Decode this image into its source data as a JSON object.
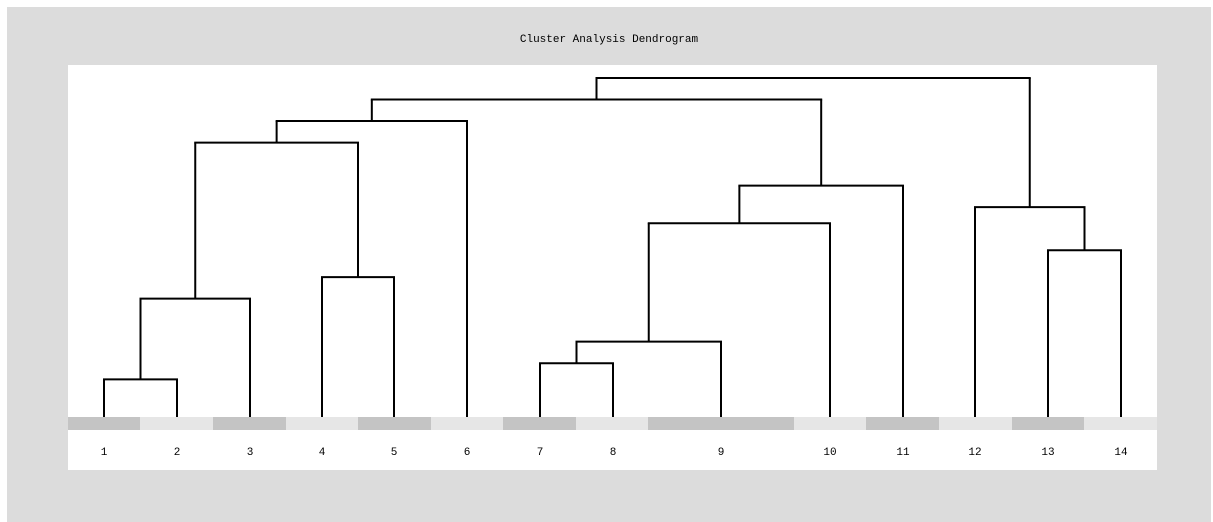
{
  "title": "Cluster Analysis Dendrogram",
  "leaves": [
    "1",
    "2",
    "3",
    "4",
    "5",
    "6",
    "7",
    "8",
    "9",
    "10",
    "11",
    "12",
    "13",
    "14"
  ],
  "colors": {
    "background": "#dcdcdc",
    "plot": "#ffffff",
    "line": "#000000",
    "band_dark": "#c4c4c4",
    "band_light": "#e6e6e6"
  },
  "merges": [
    {
      "a": "1",
      "b": "2",
      "height": 0.7
    },
    {
      "a": "1-2",
      "b": "3",
      "height": 2.2
    },
    {
      "a": "4",
      "b": "5",
      "height": 2.6
    },
    {
      "a": "1-3",
      "b": "4-5",
      "height": 5.1
    },
    {
      "a": "1-5",
      "b": "6",
      "height": 5.5
    },
    {
      "a": "7",
      "b": "8",
      "height": 1.0
    },
    {
      "a": "7-8",
      "b": "9",
      "height": 1.4
    },
    {
      "a": "7-9",
      "b": "10",
      "height": 3.6
    },
    {
      "a": "7-10",
      "b": "11",
      "height": 4.3
    },
    {
      "a": "13",
      "b": "14",
      "height": 3.1
    },
    {
      "a": "12",
      "b": "13-14",
      "height": 3.9
    },
    {
      "a": "1-6",
      "b": "7-11",
      "height": 5.9
    },
    {
      "a": "1-11",
      "b": "12-14",
      "height": 6.3
    }
  ]
}
